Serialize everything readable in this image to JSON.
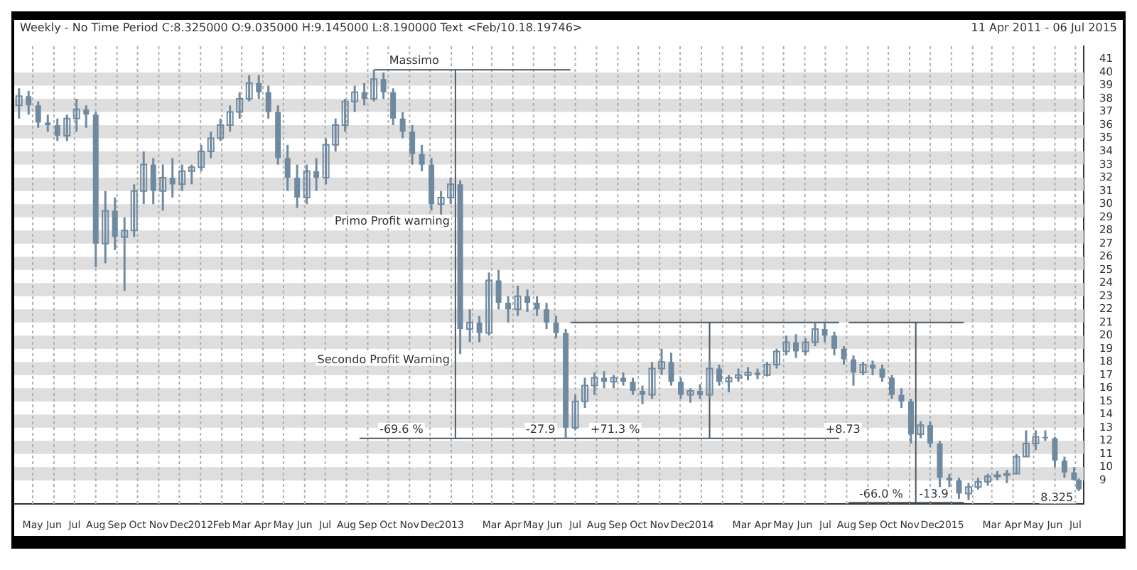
{
  "chart_data": {
    "type": "candlestick",
    "title": "Weekly -  No Time Period   C:8.325000 O:9.035000 H:9.145000 L:8.190000 Text <Feb/10.18.19746>",
    "subtitle": "11 Apr 2011  -  06 Jul 2015",
    "x": [
      "2011-04-11",
      "2011-04-25",
      "2011-05-09",
      "2011-05-23",
      "2011-06-06",
      "2011-06-20",
      "2011-07-04",
      "2011-07-18",
      "2011-08-01",
      "2011-08-15",
      "2011-08-29",
      "2011-09-12",
      "2011-09-26",
      "2011-10-10",
      "2011-10-24",
      "2011-11-07",
      "2011-11-21",
      "2011-12-05",
      "2011-12-19",
      "2012-01-02",
      "2012-01-16",
      "2012-01-30",
      "2012-02-13",
      "2012-02-27",
      "2012-03-12",
      "2012-03-26",
      "2012-04-09",
      "2012-04-23",
      "2012-05-07",
      "2012-05-21",
      "2012-06-04",
      "2012-06-18",
      "2012-07-02",
      "2012-07-16",
      "2012-07-30",
      "2012-08-13",
      "2012-08-27",
      "2012-09-10",
      "2012-09-24",
      "2012-10-08",
      "2012-10-22",
      "2012-11-05",
      "2012-11-19",
      "2012-12-03",
      "2012-12-17",
      "2012-12-31",
      "2013-01-14",
      "2013-01-28",
      "2013-02-11",
      "2013-02-25",
      "2013-03-11",
      "2013-03-25",
      "2013-04-08",
      "2013-04-22",
      "2013-05-06",
      "2013-05-20",
      "2013-06-03",
      "2013-06-17",
      "2013-07-01",
      "2013-07-15",
      "2013-07-29",
      "2013-08-12",
      "2013-08-26",
      "2013-09-09",
      "2013-09-23",
      "2013-10-07",
      "2013-10-21",
      "2013-11-04",
      "2013-11-18",
      "2013-12-02",
      "2013-12-16",
      "2013-12-30",
      "2014-01-13",
      "2014-01-27",
      "2014-02-10",
      "2014-02-24",
      "2014-03-10",
      "2014-03-24",
      "2014-04-07",
      "2014-04-21",
      "2014-05-05",
      "2014-05-19",
      "2014-06-02",
      "2014-06-16",
      "2014-06-30",
      "2014-07-14",
      "2014-07-28",
      "2014-08-11",
      "2014-08-25",
      "2014-09-08",
      "2014-09-22",
      "2014-10-06",
      "2014-10-20",
      "2014-11-03",
      "2014-11-17",
      "2014-12-01",
      "2014-12-15",
      "2014-12-29",
      "2015-01-12",
      "2015-01-26",
      "2015-02-09",
      "2015-02-23",
      "2015-03-09",
      "2015-03-23",
      "2015-04-06",
      "2015-04-20",
      "2015-05-04",
      "2015-05-18",
      "2015-06-01",
      "2015-06-15",
      "2015-06-29",
      "2015-07-06"
    ],
    "ohlc": [
      [
        37.5,
        38.8,
        36.5,
        38.2
      ],
      [
        38.2,
        38.6,
        36.8,
        37.5
      ],
      [
        37.5,
        37.8,
        35.8,
        36.2
      ],
      [
        36.2,
        36.8,
        35.5,
        36.0
      ],
      [
        36.0,
        36.5,
        34.8,
        35.2
      ],
      [
        35.2,
        36.8,
        34.8,
        36.5
      ],
      [
        36.5,
        38.0,
        35.5,
        37.2
      ],
      [
        37.2,
        37.5,
        35.8,
        36.8
      ],
      [
        36.8,
        37.0,
        25.2,
        27.0
      ],
      [
        27.0,
        31.0,
        25.5,
        29.5
      ],
      [
        29.5,
        30.5,
        26.5,
        27.5
      ],
      [
        27.5,
        29.0,
        23.4,
        28.0
      ],
      [
        28.0,
        31.5,
        27.5,
        31.0
      ],
      [
        31.0,
        34.0,
        30.0,
        33.0
      ],
      [
        33.0,
        33.5,
        30.0,
        31.0
      ],
      [
        31.0,
        33.0,
        29.5,
        32.0
      ],
      [
        32.0,
        33.5,
        30.5,
        31.5
      ],
      [
        31.5,
        33.0,
        31.0,
        32.5
      ],
      [
        32.5,
        33.0,
        31.5,
        32.8
      ],
      [
        32.8,
        34.5,
        32.5,
        34.0
      ],
      [
        34.0,
        35.5,
        33.5,
        35.0
      ],
      [
        35.0,
        36.5,
        34.8,
        36.0
      ],
      [
        36.0,
        37.5,
        35.5,
        37.0
      ],
      [
        37.0,
        38.5,
        36.5,
        38.0
      ],
      [
        38.0,
        39.8,
        37.8,
        39.2
      ],
      [
        39.2,
        39.8,
        38.0,
        38.5
      ],
      [
        38.5,
        39.0,
        36.5,
        37.0
      ],
      [
        37.0,
        37.5,
        33.0,
        33.5
      ],
      [
        33.5,
        34.5,
        31.0,
        32.0
      ],
      [
        32.0,
        33.0,
        29.7,
        30.5
      ],
      [
        30.5,
        33.0,
        30.0,
        32.5
      ],
      [
        32.5,
        33.5,
        31.0,
        32.0
      ],
      [
        32.0,
        35.0,
        31.5,
        34.5
      ],
      [
        34.5,
        36.5,
        34.0,
        36.0
      ],
      [
        36.0,
        38.0,
        35.5,
        37.8
      ],
      [
        37.8,
        39.0,
        37.0,
        38.5
      ],
      [
        38.5,
        39.2,
        37.5,
        38.0
      ],
      [
        38.0,
        40.2,
        37.8,
        39.5
      ],
      [
        39.5,
        40.0,
        38.0,
        38.5
      ],
      [
        38.5,
        38.8,
        36.0,
        36.5
      ],
      [
        36.5,
        37.0,
        35.0,
        35.5
      ],
      [
        35.5,
        36.0,
        33.0,
        33.8
      ],
      [
        33.8,
        34.5,
        32.5,
        33.0
      ],
      [
        33.0,
        33.5,
        29.5,
        30.0
      ],
      [
        30.0,
        31.0,
        29.2,
        30.5
      ],
      [
        30.5,
        32.0,
        30.0,
        31.5
      ],
      [
        31.5,
        31.8,
        18.6,
        20.5
      ],
      [
        20.5,
        22.0,
        19.5,
        21.0
      ],
      [
        21.0,
        21.5,
        19.5,
        20.2
      ],
      [
        20.2,
        24.8,
        20.0,
        24.2
      ],
      [
        24.2,
        25.0,
        22.0,
        22.5
      ],
      [
        22.5,
        23.0,
        21.0,
        22.0
      ],
      [
        22.0,
        23.8,
        21.5,
        23.0
      ],
      [
        23.0,
        23.5,
        21.8,
        22.5
      ],
      [
        22.5,
        23.0,
        21.5,
        22.0
      ],
      [
        22.0,
        22.5,
        20.5,
        21.0
      ],
      [
        21.0,
        21.5,
        19.8,
        20.2
      ],
      [
        20.2,
        20.5,
        12.2,
        13.0
      ],
      [
        13.0,
        15.5,
        12.8,
        15.0
      ],
      [
        15.0,
        16.8,
        14.5,
        16.2
      ],
      [
        16.2,
        17.2,
        15.5,
        16.8
      ],
      [
        16.8,
        17.3,
        16.0,
        16.5
      ],
      [
        16.5,
        17.0,
        16.0,
        16.8
      ],
      [
        16.8,
        17.2,
        16.2,
        16.5
      ],
      [
        16.5,
        16.8,
        15.5,
        15.8
      ],
      [
        15.8,
        16.2,
        14.8,
        15.5
      ],
      [
        15.5,
        18.0,
        15.2,
        17.5
      ],
      [
        17.5,
        19.0,
        17.0,
        18.0
      ],
      [
        18.0,
        18.7,
        16.2,
        16.5
      ],
      [
        16.5,
        16.8,
        15.2,
        15.5
      ],
      [
        15.5,
        16.0,
        14.9,
        15.8
      ],
      [
        15.8,
        16.3,
        15.2,
        15.5
      ],
      [
        15.5,
        18.2,
        15.3,
        17.5
      ],
      [
        17.5,
        17.8,
        16.2,
        16.5
      ],
      [
        16.5,
        17.0,
        15.7,
        16.8
      ],
      [
        16.8,
        17.5,
        16.5,
        17.0
      ],
      [
        17.0,
        17.6,
        16.6,
        17.2
      ],
      [
        17.2,
        17.5,
        16.7,
        17.0
      ],
      [
        17.0,
        18.0,
        16.9,
        17.8
      ],
      [
        17.8,
        19.0,
        17.5,
        18.8
      ],
      [
        18.8,
        20.0,
        18.5,
        19.5
      ],
      [
        19.5,
        20.1,
        18.3,
        18.8
      ],
      [
        18.8,
        19.8,
        18.5,
        19.5
      ],
      [
        19.5,
        21.0,
        19.2,
        20.5
      ],
      [
        20.5,
        21.0,
        19.5,
        20.0
      ],
      [
        20.0,
        20.3,
        18.5,
        19.0
      ],
      [
        19.0,
        19.2,
        17.8,
        18.2
      ],
      [
        18.2,
        18.5,
        16.2,
        17.2
      ],
      [
        17.2,
        18.0,
        17.0,
        17.8
      ],
      [
        17.8,
        18.1,
        17.0,
        17.5
      ],
      [
        17.5,
        17.8,
        16.5,
        16.8
      ],
      [
        16.8,
        17.0,
        15.2,
        15.5
      ],
      [
        15.5,
        16.0,
        14.5,
        15.0
      ],
      [
        15.0,
        15.2,
        11.8,
        12.5
      ],
      [
        12.5,
        13.5,
        12.2,
        13.2
      ],
      [
        13.2,
        13.5,
        11.5,
        11.8
      ],
      [
        11.8,
        12.0,
        8.5,
        9.2
      ],
      [
        9.2,
        9.5,
        8.5,
        9.0
      ],
      [
        9.0,
        9.2,
        7.6,
        8.0
      ],
      [
        8.0,
        8.8,
        7.5,
        8.5
      ],
      [
        8.5,
        9.2,
        8.3,
        8.9
      ],
      [
        8.9,
        9.5,
        8.6,
        9.3
      ],
      [
        9.3,
        9.7,
        9.0,
        9.4
      ],
      [
        9.4,
        9.8,
        8.8,
        9.5
      ],
      [
        9.5,
        11.0,
        9.5,
        10.8
      ],
      [
        10.8,
        12.8,
        10.8,
        11.8
      ],
      [
        11.8,
        12.8,
        11.3,
        12.3
      ],
      [
        12.3,
        12.8,
        12.0,
        12.2
      ],
      [
        12.2,
        12.3,
        10.0,
        10.5
      ],
      [
        10.5,
        10.8,
        9.2,
        9.6
      ],
      [
        9.6,
        10.0,
        9.0,
        9.035
      ],
      [
        9.035,
        9.145,
        8.19,
        8.325
      ]
    ],
    "color": "#6f8aa0",
    "series": [
      {
        "type": "line",
        "color": "#4a5a66",
        "x": [
          "2012-09-10",
          "2013-06-24"
        ],
        "values": [
          40.2,
          40.2
        ]
      },
      {
        "type": "line",
        "color": "#4a5a66",
        "x": [
          "2013-01-07",
          "2013-01-07"
        ],
        "values": [
          40.2,
          12.2
        ]
      },
      {
        "type": "line",
        "color": "#4a5a66",
        "x": [
          "2012-08-20",
          "2014-07-21"
        ],
        "values": [
          12.2,
          12.2
        ]
      },
      {
        "type": "line",
        "color": "#4a5a66",
        "x": [
          "2013-06-24",
          "2014-07-21"
        ],
        "values": [
          21,
          21
        ]
      },
      {
        "type": "line",
        "color": "#4a5a66",
        "x": [
          "2014-01-13",
          "2014-01-13"
        ],
        "values": [
          12.2,
          21
        ]
      },
      {
        "type": "line",
        "color": "#4a5a66",
        "x": [
          "2014-08-04",
          "2015-01-19"
        ],
        "values": [
          21,
          21
        ]
      },
      {
        "type": "line",
        "color": "#4a5a66",
        "x": [
          "2014-11-10",
          "2014-11-10"
        ],
        "values": [
          21,
          7.3
        ]
      },
      {
        "type": "line",
        "color": "#4a5a66",
        "x": [
          "2014-08-04",
          "2015-01-19"
        ],
        "values": [
          7.3,
          7.3
        ]
      }
    ],
    "annotations": [
      {
        "text": "Massimo",
        "x": "2012-09-24",
        "y": 40.2
      },
      {
        "text": "Primo Profit warning",
        "x": "2013-01-07",
        "y": 28
      },
      {
        "text": "Secondo Profit Warning",
        "x": "2013-01-07",
        "y": 17.5
      },
      {
        "text": "-69.6 %",
        "x": "2012-09-10",
        "y": 12.2
      },
      {
        "text": "-27.9",
        "x": "2013-06-10",
        "y": 12.2
      },
      {
        "text": "+71.3 %",
        "x": "2013-07-15",
        "y": 12.2
      },
      {
        "text": "+8.73",
        "x": "2014-06-23",
        "y": 12.2
      },
      {
        "text": "-66.0 %",
        "x": "2014-08-11",
        "y": 7.3
      },
      {
        "text": "-13.9",
        "x": "2015-01-05",
        "y": 7.3
      },
      {
        "text": "8.325",
        "x": "2015-07-06",
        "y": 8.325
      }
    ],
    "xlim": [
      "2011-04-04",
      "2015-07-13"
    ],
    "xticks": [
      {
        "value": "2011-05-01",
        "label": "May"
      },
      {
        "value": "2011-06-01",
        "label": "Jun"
      },
      {
        "value": "2011-07-01",
        "label": "Jul"
      },
      {
        "value": "2011-08-01",
        "label": "Aug"
      },
      {
        "value": "2011-09-01",
        "label": "Sep"
      },
      {
        "value": "2011-10-01",
        "label": "Oct"
      },
      {
        "value": "2011-11-01",
        "label": "Nov"
      },
      {
        "value": "2011-12-01",
        "label": "Dec"
      },
      {
        "value": "2012-01-01",
        "label": "2012"
      },
      {
        "value": "2012-02-01",
        "label": "Feb"
      },
      {
        "value": "2012-03-01",
        "label": "Mar"
      },
      {
        "value": "2012-04-01",
        "label": "Apr"
      },
      {
        "value": "2012-05-01",
        "label": "May"
      },
      {
        "value": "2012-06-01",
        "label": "Jun"
      },
      {
        "value": "2012-07-01",
        "label": "Jul"
      },
      {
        "value": "2012-08-01",
        "label": "Aug"
      },
      {
        "value": "2012-09-01",
        "label": "Sep"
      },
      {
        "value": "2012-10-01",
        "label": "Oct"
      },
      {
        "value": "2012-11-01",
        "label": "Nov"
      },
      {
        "value": "2012-12-01",
        "label": "Dec"
      },
      {
        "value": "2013-01-01",
        "label": "2013"
      },
      {
        "value": "2013-02-01",
        "label": null
      },
      {
        "value": "2013-03-01",
        "label": "Mar"
      },
      {
        "value": "2013-04-01",
        "label": "Apr"
      },
      {
        "value": "2013-05-01",
        "label": "May"
      },
      {
        "value": "2013-06-01",
        "label": "Jun"
      },
      {
        "value": "2013-07-01",
        "label": "Jul"
      },
      {
        "value": "2013-08-01",
        "label": "Aug"
      },
      {
        "value": "2013-09-01",
        "label": "Sep"
      },
      {
        "value": "2013-10-01",
        "label": "Oct"
      },
      {
        "value": "2013-11-01",
        "label": "Nov"
      },
      {
        "value": "2013-12-01",
        "label": "Dec"
      },
      {
        "value": "2014-01-01",
        "label": "2014"
      },
      {
        "value": "2014-02-01",
        "label": null
      },
      {
        "value": "2014-03-01",
        "label": "Mar"
      },
      {
        "value": "2014-04-01",
        "label": "Apr"
      },
      {
        "value": "2014-05-01",
        "label": "May"
      },
      {
        "value": "2014-06-01",
        "label": "Jun"
      },
      {
        "value": "2014-07-01",
        "label": "Jul"
      },
      {
        "value": "2014-08-01",
        "label": "Aug"
      },
      {
        "value": "2014-09-01",
        "label": "Sep"
      },
      {
        "value": "2014-10-01",
        "label": "Oct"
      },
      {
        "value": "2014-11-01",
        "label": "Nov"
      },
      {
        "value": "2014-12-01",
        "label": "Dec"
      },
      {
        "value": "2015-01-01",
        "label": "2015"
      },
      {
        "value": "2015-02-01",
        "label": null
      },
      {
        "value": "2015-03-01",
        "label": "Mar"
      },
      {
        "value": "2015-04-01",
        "label": "Apr"
      },
      {
        "value": "2015-05-01",
        "label": "May"
      },
      {
        "value": "2015-06-01",
        "label": "Jun"
      },
      {
        "value": "2015-07-01",
        "label": "Jul"
      }
    ],
    "ylim": [
      7.2,
      42
    ],
    "yticks": [
      9,
      10,
      11,
      12,
      13,
      14,
      15,
      16,
      17,
      18,
      19,
      20,
      21,
      22,
      23,
      24,
      25,
      26,
      27,
      28,
      29,
      30,
      31,
      32,
      33,
      34,
      35,
      36,
      37,
      38,
      39,
      40,
      41
    ],
    "grid": true
  }
}
